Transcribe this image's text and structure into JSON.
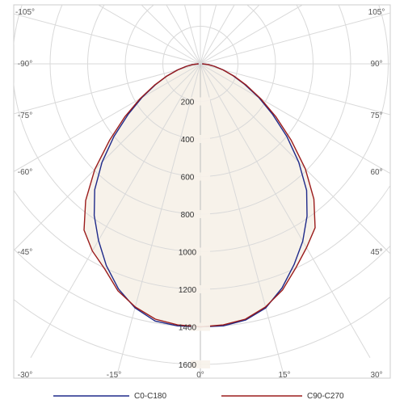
{
  "chart_data": {
    "type": "polar",
    "title": "",
    "angle_unit": "°",
    "radial_ticks": [
      200,
      400,
      600,
      800,
      1000,
      1200,
      1400,
      1600
    ],
    "radial_max": 1600,
    "angle_labels": {
      "left": [
        "-105°",
        "-90°",
        "-75°",
        "-60°",
        "-45°",
        "-30°",
        "-15°"
      ],
      "bottom": [
        "0°"
      ],
      "right": [
        "15°",
        "30°",
        "45°",
        "60°",
        "75°",
        "90°",
        "105°"
      ]
    },
    "colors": {
      "C0-C180": "#1f2a8a",
      "C90-C270": "#9b1c1c",
      "fill": "#f7f2ea",
      "grid": "#d9d9d9"
    },
    "series": [
      {
        "name": "C0-C180",
        "angles": [
          0,
          5,
          10,
          15,
          20,
          25,
          30,
          35,
          40,
          45,
          50,
          55,
          60,
          65,
          70,
          75,
          80,
          85,
          90
        ],
        "values": [
          1400,
          1400,
          1385,
          1345,
          1270,
          1180,
          1090,
          990,
          880,
          740,
          600,
          470,
          360,
          260,
          185,
          125,
          75,
          40,
          10
        ],
        "values_negative": [
          1400,
          1400,
          1390,
          1345,
          1275,
          1185,
          1085,
          985,
          875,
          740,
          600,
          470,
          360,
          265,
          190,
          125,
          75,
          40,
          10
        ]
      },
      {
        "name": "C90-C270",
        "angles": [
          0,
          5,
          10,
          15,
          20,
          25,
          30,
          35,
          40,
          45,
          50,
          55,
          60,
          65,
          70,
          75,
          80,
          85,
          90
        ],
        "values": [
          1400,
          1395,
          1380,
          1340,
          1280,
          1200,
          1130,
          1065,
          940,
          790,
          630,
          490,
          370,
          270,
          190,
          125,
          75,
          40,
          10
        ],
        "values_negative": [
          1400,
          1395,
          1380,
          1340,
          1285,
          1205,
          1150,
          1080,
          950,
          795,
          630,
          490,
          370,
          270,
          190,
          125,
          75,
          40,
          10
        ]
      }
    ],
    "legend": {
      "position": "bottom",
      "entries": [
        "C0-C180",
        "C90-C270"
      ]
    },
    "grid": true
  }
}
